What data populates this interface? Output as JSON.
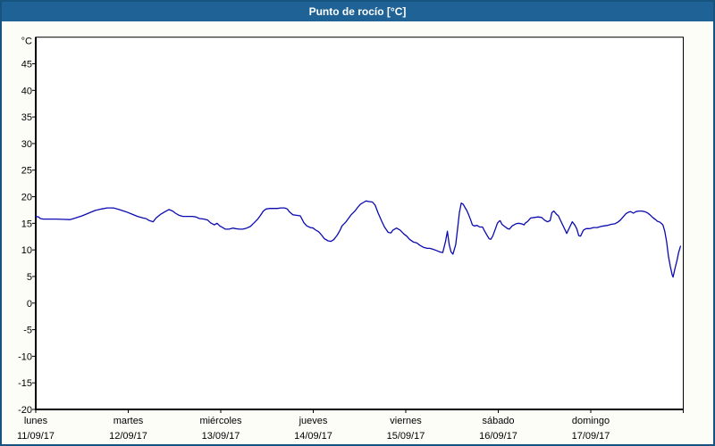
{
  "window": {
    "title": "Punto de rocío [°C]"
  },
  "colors": {
    "title_bar": "#1F6396",
    "title_text": "#FFFFFF",
    "outer_border": "#17537F",
    "panel_background": "#FDFDF8",
    "plot_background": "#FFFFFF",
    "grid": "#000000",
    "axis": "#000000",
    "line": "#0A0AB0"
  },
  "chart_data": {
    "type": "line",
    "title": "Punto de rocío [°C]",
    "xlabel": "",
    "ylabel": "°C",
    "ylim": [
      -20,
      50
    ],
    "y_ticks": [
      45,
      40,
      35,
      30,
      25,
      20,
      15,
      10,
      5,
      0,
      -5,
      -10,
      -15,
      -20
    ],
    "xlim_days": [
      0,
      7
    ],
    "grid": "dashed",
    "legend_position": "none",
    "x_ticks": [
      {
        "day": "lunes",
        "date": "11/09/17"
      },
      {
        "day": "martes",
        "date": "12/09/17"
      },
      {
        "day": "miércoles",
        "date": "13/09/17"
      },
      {
        "day": "jueves",
        "date": "14/09/17"
      },
      {
        "day": "viernes",
        "date": "15/09/17"
      },
      {
        "day": "sábado",
        "date": "16/09/17"
      },
      {
        "day": "domingo",
        "date": "17/09/17"
      }
    ],
    "series": [
      {
        "name": "Punto de rocío",
        "color": "#0A0AB0",
        "x_days": [
          0,
          0.03,
          0.05,
          0.08,
          0.14,
          0.21,
          0.29,
          0.37,
          0.43,
          0.5,
          0.57,
          0.64,
          0.71,
          0.77,
          0.84,
          0.9,
          0.97,
          1.03,
          1.1,
          1.16,
          1.19,
          1.23,
          1.27,
          1.3,
          1.35,
          1.4,
          1.44,
          1.48,
          1.51,
          1.55,
          1.59,
          1.64,
          1.69,
          1.73,
          1.77,
          1.82,
          1.86,
          1.89,
          1.93,
          1.96,
          1.99,
          2.02,
          2.05,
          2.09,
          2.13,
          2.16,
          2.2,
          2.24,
          2.28,
          2.32,
          2.36,
          2.4,
          2.43,
          2.46,
          2.49,
          2.53,
          2.57,
          2.61,
          2.65,
          2.69,
          2.72,
          2.74,
          2.78,
          2.82,
          2.86,
          2.9,
          2.93,
          2.97,
          3.0,
          3.02,
          3.06,
          3.09,
          3.12,
          3.16,
          3.19,
          3.22,
          3.26,
          3.29,
          3.31,
          3.35,
          3.38,
          3.41,
          3.45,
          3.48,
          3.51,
          3.55,
          3.57,
          3.6,
          3.64,
          3.67,
          3.7,
          3.74,
          3.77,
          3.81,
          3.84,
          3.86,
          3.9,
          3.94,
          3.98,
          4.01,
          4.04,
          4.08,
          4.12,
          4.15,
          4.19,
          4.23,
          4.26,
          4.3,
          4.33,
          4.37,
          4.4,
          4.43,
          4.45,
          4.47,
          4.49,
          4.51,
          4.54,
          4.56,
          4.58,
          4.6,
          4.62,
          4.64,
          4.66,
          4.68,
          4.7,
          4.72,
          4.74,
          4.77,
          4.8,
          4.83,
          4.85,
          4.88,
          4.9,
          4.92,
          4.94,
          4.97,
          4.99,
          5.01,
          5.02,
          5.04,
          5.07,
          5.1,
          5.12,
          5.15,
          5.19,
          5.22,
          5.25,
          5.28,
          5.29,
          5.32,
          5.35,
          5.39,
          5.43,
          5.47,
          5.5,
          5.53,
          5.56,
          5.58,
          5.6,
          5.63,
          5.65,
          5.68,
          5.71,
          5.74,
          5.77,
          5.8,
          5.83,
          5.85,
          5.87,
          5.89,
          5.92,
          5.95,
          5.99,
          6.03,
          6.07,
          6.11,
          6.14,
          6.18,
          6.22,
          6.26,
          6.29,
          6.32,
          6.35,
          6.38,
          6.41,
          6.43,
          6.46,
          6.49,
          6.52,
          6.55,
          6.58,
          6.61,
          6.64,
          6.67,
          6.7,
          6.72,
          6.75,
          6.78,
          6.8,
          6.82,
          6.84,
          6.86,
          6.88,
          6.89,
          6.91,
          6.93,
          6.95,
          6.97
        ],
        "values": [
          16.3,
          16.2,
          15.9,
          15.8,
          15.8,
          15.8,
          15.75,
          15.7,
          16.0,
          16.4,
          16.9,
          17.4,
          17.7,
          17.9,
          17.9,
          17.6,
          17.2,
          16.8,
          16.3,
          16.0,
          15.9,
          15.5,
          15.3,
          16.0,
          16.7,
          17.2,
          17.6,
          17.3,
          16.9,
          16.5,
          16.3,
          16.3,
          16.3,
          16.2,
          15.9,
          15.8,
          15.6,
          15.1,
          14.7,
          15.0,
          14.5,
          14.2,
          13.9,
          13.9,
          14.1,
          14.0,
          13.9,
          13.9,
          14.1,
          14.4,
          15.1,
          15.8,
          16.5,
          17.3,
          17.7,
          17.8,
          17.8,
          17.8,
          17.9,
          17.9,
          17.7,
          17.2,
          16.6,
          16.5,
          16.4,
          15.1,
          14.5,
          14.2,
          14.1,
          13.8,
          13.4,
          12.8,
          12.1,
          11.7,
          11.6,
          11.9,
          12.8,
          13.7,
          14.5,
          15.2,
          15.9,
          16.6,
          17.3,
          18.0,
          18.6,
          19.0,
          19.2,
          19.1,
          19.0,
          18.4,
          17.0,
          15.4,
          14.3,
          13.3,
          13.2,
          13.7,
          14.1,
          13.7,
          13.0,
          12.6,
          12.0,
          11.5,
          11.3,
          10.9,
          10.5,
          10.3,
          10.3,
          10.1,
          9.9,
          9.6,
          9.5,
          11.6,
          13.5,
          11.0,
          9.6,
          9.2,
          11.0,
          14.0,
          17.0,
          18.8,
          18.6,
          18.0,
          17.4,
          16.6,
          15.7,
          14.7,
          14.5,
          14.6,
          14.3,
          14.3,
          13.6,
          12.7,
          12.1,
          12.0,
          12.6,
          14.0,
          15.0,
          15.4,
          15.5,
          14.8,
          14.4,
          14.0,
          13.9,
          14.5,
          14.9,
          15.0,
          14.9,
          14.7,
          15.0,
          15.4,
          16.0,
          16.1,
          16.2,
          16.1,
          15.6,
          15.3,
          15.5,
          17.0,
          17.3,
          16.7,
          16.4,
          15.3,
          14.2,
          13.1,
          14.2,
          15.3,
          14.6,
          13.9,
          12.7,
          12.6,
          13.7,
          14.0,
          14.0,
          14.2,
          14.2,
          14.4,
          14.5,
          14.6,
          14.8,
          14.9,
          15.2,
          15.6,
          16.2,
          16.8,
          17.1,
          17.2,
          16.9,
          17.2,
          17.3,
          17.3,
          17.2,
          17.0,
          16.6,
          16.1,
          15.7,
          15.4,
          15.2,
          14.7,
          13.5,
          11.5,
          8.8,
          6.9,
          5.3,
          4.9,
          6.5,
          7.9,
          9.5,
          10.7
        ]
      }
    ]
  }
}
